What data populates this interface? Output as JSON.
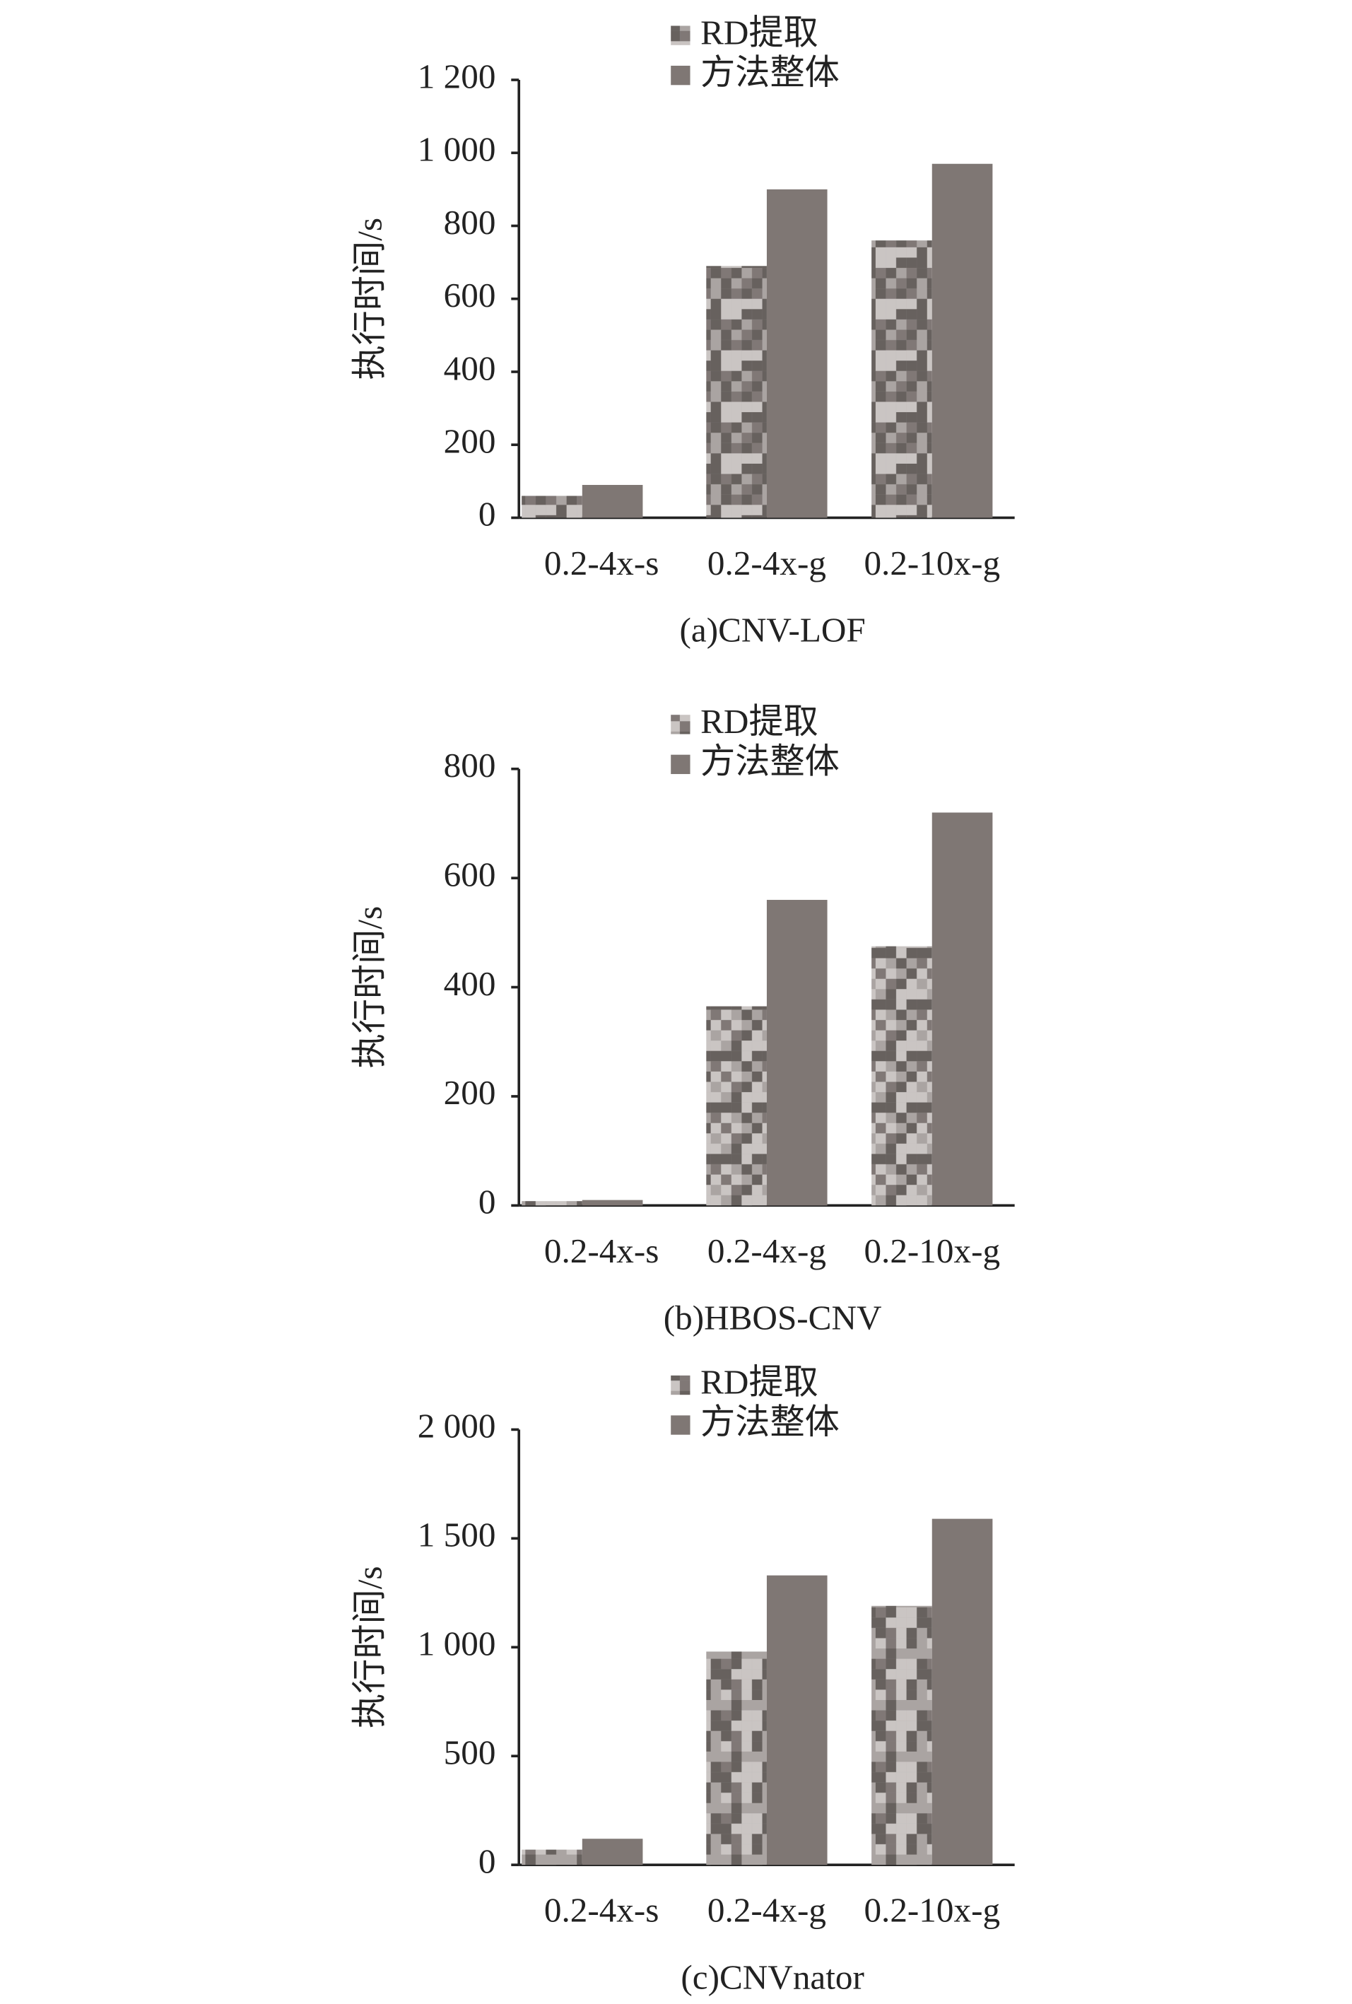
{
  "chart_data": [
    {
      "type": "bar",
      "title": "(a)CNV-LOF",
      "y_label": "执行时间/s",
      "categories": [
        "0.2-4x-s",
        "0.2-4x-g",
        "0.2-10x-g"
      ],
      "series": [
        {
          "name": "RD提取",
          "color": "#aaa4a2",
          "values": [
            60,
            690,
            760
          ]
        },
        {
          "name": "方法整体",
          "color": "#7f7774",
          "values": [
            90,
            900,
            970
          ]
        }
      ],
      "ylim": [
        0,
        1200
      ],
      "yticks": [
        0,
        200,
        400,
        600,
        800,
        {
          "value": 1000,
          "label": "1 000"
        },
        {
          "value": 1200,
          "label": "1 200"
        }
      ]
    },
    {
      "type": "bar",
      "title": "(b)HBOS-CNV",
      "y_label": "执行时间/s",
      "categories": [
        "0.2-4x-s",
        "0.2-4x-g",
        "0.2-10x-g"
      ],
      "series": [
        {
          "name": "RD提取",
          "color": "#aaa4a2",
          "values": [
            8,
            365,
            475
          ]
        },
        {
          "name": "方法整体",
          "color": "#7f7774",
          "values": [
            10,
            560,
            720
          ]
        }
      ],
      "ylim": [
        0,
        800
      ],
      "yticks": [
        0,
        200,
        400,
        600,
        800
      ]
    },
    {
      "type": "bar",
      "title": "(c)CNVnator",
      "y_label": "执行时间/s",
      "categories": [
        "0.2-4x-s",
        "0.2-4x-g",
        "0.2-10x-g"
      ],
      "series": [
        {
          "name": "RD提取",
          "color": "#aaa4a2",
          "values": [
            70,
            980,
            1190
          ]
        },
        {
          "name": "方法整体",
          "color": "#7f7774",
          "values": [
            120,
            1330,
            1590
          ]
        }
      ],
      "ylim": [
        0,
        2000
      ],
      "yticks": [
        0,
        500,
        {
          "value": 1000,
          "label": "1 000"
        },
        {
          "value": 1500,
          "label": "1 500"
        },
        {
          "value": 2000,
          "label": "2 000"
        }
      ]
    }
  ]
}
